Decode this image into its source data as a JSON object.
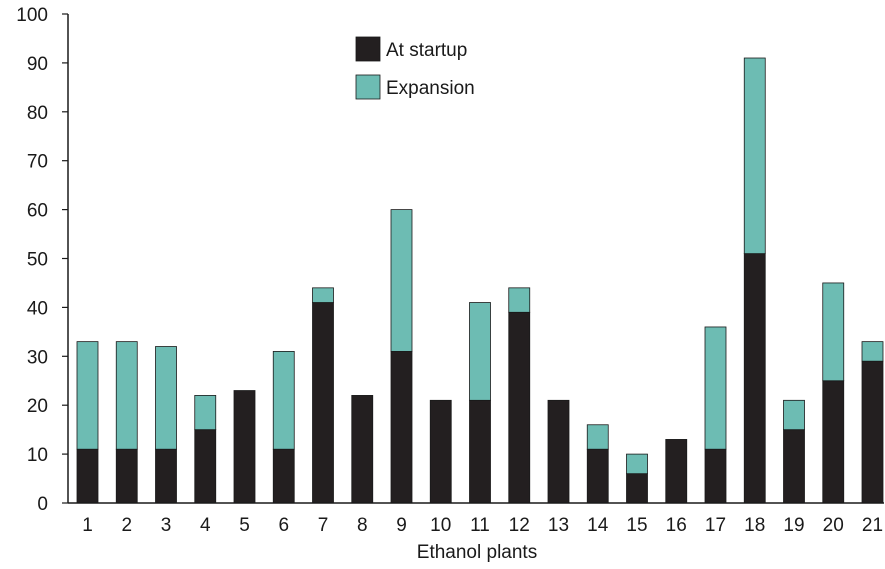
{
  "chart_data": {
    "type": "bar",
    "stacked": true,
    "title": "",
    "xlabel": "Ethanol plants",
    "ylabel": "",
    "ylim": [
      0,
      100
    ],
    "yticks": [
      0,
      10,
      20,
      30,
      40,
      50,
      60,
      70,
      80,
      90,
      100
    ],
    "categories": [
      "1",
      "2",
      "3",
      "4",
      "5",
      "6",
      "7",
      "8",
      "9",
      "10",
      "11",
      "12",
      "13",
      "14",
      "15",
      "16",
      "17",
      "18",
      "19",
      "20",
      "21"
    ],
    "series": [
      {
        "name": "At startup",
        "color": "#231f20",
        "values": [
          11,
          11,
          11,
          15,
          23,
          11,
          41,
          22,
          31,
          21,
          21,
          39,
          21,
          11,
          6,
          13,
          11,
          51,
          15,
          25,
          29
        ]
      },
      {
        "name": "Expansion",
        "color": "#6dbcb3",
        "values": [
          22,
          22,
          21,
          7,
          0,
          20,
          3,
          0,
          29,
          0,
          20,
          5,
          0,
          5,
          4,
          0,
          25,
          40,
          6,
          20,
          4
        ]
      }
    ],
    "grid": false,
    "legend_position": "top-center"
  }
}
